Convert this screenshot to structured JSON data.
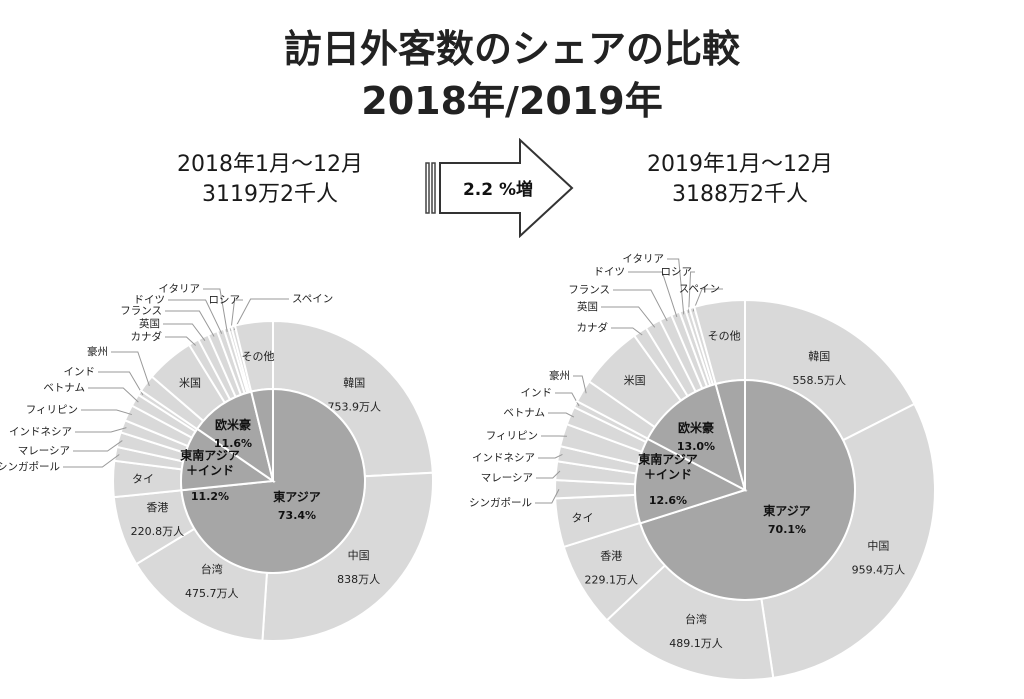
{
  "title": {
    "line1": "訪日外客数のシェアの比較",
    "line2": "2018年/2019年"
  },
  "left": {
    "period": "2018年1月～12月",
    "total": "3119万2千人"
  },
  "right": {
    "period": "2019年1月～12月",
    "total": "3188万2千人"
  },
  "growth_label": "2.2 %増",
  "chart_data": [
    {
      "type": "pie",
      "year": "2018",
      "inner": [
        {
          "name": "東アジア",
          "value": 73.4,
          "pct": "73.4%"
        },
        {
          "name": "東南アジア\n＋インド",
          "value": 11.2,
          "pct": "11.2%"
        },
        {
          "name": "欧米豪",
          "value": 11.6,
          "pct": "11.6%"
        },
        {
          "name": "",
          "value": 3.8,
          "pct": ""
        }
      ],
      "outer": [
        {
          "name": "韓国",
          "value": 753.9,
          "label": "753.9万人"
        },
        {
          "name": "中国",
          "value": 838.0,
          "label": "838万人"
        },
        {
          "name": "台湾",
          "value": 475.7,
          "label": "475.7万人"
        },
        {
          "name": "香港",
          "value": 220.8,
          "label": "220.8万人"
        },
        {
          "name": "タイ",
          "value": 113.2
        },
        {
          "name": "シンガポール",
          "value": 43.7
        },
        {
          "name": "マレーシア",
          "value": 46.8
        },
        {
          "name": "インドネシア",
          "value": 39.7
        },
        {
          "name": "フィリピン",
          "value": 50.4
        },
        {
          "name": "ベトナム",
          "value": 38.9
        },
        {
          "name": "インド",
          "value": 15.4
        },
        {
          "name": "豪州",
          "value": 55.2
        },
        {
          "name": "米国",
          "value": 152.6
        },
        {
          "name": "カナダ",
          "value": 33.1
        },
        {
          "name": "英国",
          "value": 33.4
        },
        {
          "name": "フランス",
          "value": 30.5
        },
        {
          "name": "ドイツ",
          "value": 21.5
        },
        {
          "name": "イタリア",
          "value": 15.0
        },
        {
          "name": "ロシア",
          "value": 9.5
        },
        {
          "name": "スペイン",
          "value": 11.9
        },
        {
          "name": "その他",
          "value": 119.0
        }
      ]
    },
    {
      "type": "pie",
      "year": "2019",
      "inner": [
        {
          "name": "東アジア",
          "value": 70.1,
          "pct": "70.1%"
        },
        {
          "name": "東南アジア\n＋インド",
          "value": 12.6,
          "pct": "12.6%"
        },
        {
          "name": "欧米豪",
          "value": 13.0,
          "pct": "13.0%"
        },
        {
          "name": "",
          "value": 4.3,
          "pct": ""
        }
      ],
      "outer": [
        {
          "name": "韓国",
          "value": 558.5,
          "label": "558.5万人"
        },
        {
          "name": "中国",
          "value": 959.4,
          "label": "959.4万人"
        },
        {
          "name": "台湾",
          "value": 489.1,
          "label": "489.1万人"
        },
        {
          "name": "香港",
          "value": 229.1,
          "label": "229.1万人"
        },
        {
          "name": "タイ",
          "value": 131.9
        },
        {
          "name": "シンガポール",
          "value": 49.2
        },
        {
          "name": "マレーシア",
          "value": 50.2
        },
        {
          "name": "インドネシア",
          "value": 41.3
        },
        {
          "name": "フィリピン",
          "value": 61.3
        },
        {
          "name": "ベトナム",
          "value": 49.5
        },
        {
          "name": "インド",
          "value": 17.5
        },
        {
          "name": "豪州",
          "value": 62.2
        },
        {
          "name": "米国",
          "value": 172.4
        },
        {
          "name": "カナダ",
          "value": 37.5
        },
        {
          "name": "英国",
          "value": 42.4
        },
        {
          "name": "フランス",
          "value": 33.6
        },
        {
          "name": "ドイツ",
          "value": 23.7
        },
        {
          "name": "イタリア",
          "value": 16.3
        },
        {
          "name": "ロシア",
          "value": 12.1
        },
        {
          "name": "スペイン",
          "value": 13.1
        },
        {
          "name": "その他",
          "value": 137.0
        }
      ]
    }
  ]
}
